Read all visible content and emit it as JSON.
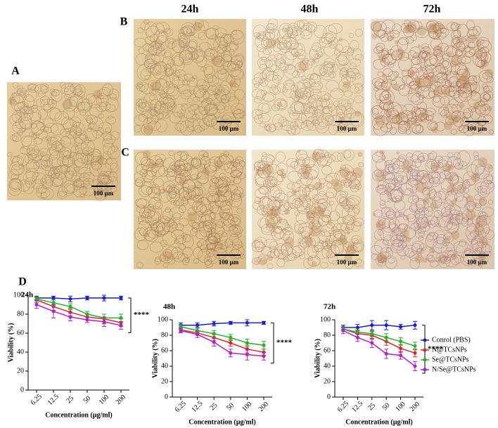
{
  "figure": {
    "panel_labels": [
      "A",
      "B",
      "C",
      "D"
    ],
    "time_labels": [
      "24h",
      "48h",
      "72h"
    ],
    "scale_bar": "100 µm"
  },
  "chart_data": [
    {
      "type": "line",
      "title": "24h",
      "x_label": "Concentration (µg/ml)",
      "y_label": "Viability (%)",
      "annotation": "****",
      "categories": [
        "6.25",
        "12.5",
        "25",
        "50",
        "100",
        "200"
      ],
      "ylim": [
        0,
        100
      ],
      "yticks": [
        0,
        20,
        40,
        60,
        80,
        100
      ],
      "series": [
        {
          "name": "Conrol (PBS)",
          "color": "#1c1cd8",
          "values": [
            97,
            97,
            96,
            97,
            97,
            97
          ],
          "errors": [
            2,
            2,
            3,
            2,
            3,
            2
          ]
        },
        {
          "name": "N@TCsNPs",
          "color": "#e02424",
          "values": [
            95,
            88,
            82,
            77,
            75,
            71
          ],
          "errors": [
            3,
            4,
            4,
            3,
            5,
            4
          ]
        },
        {
          "name": "Se@TCsNPs",
          "color": "#22b422",
          "values": [
            96,
            92,
            88,
            80,
            76,
            76
          ],
          "errors": [
            2,
            3,
            3,
            3,
            4,
            4
          ]
        },
        {
          "name": "N/Se@TCsNPs",
          "color": "#b020d0",
          "values": [
            90,
            83,
            77,
            74,
            72,
            68
          ],
          "errors": [
            4,
            7,
            4,
            3,
            5,
            4
          ]
        }
      ]
    },
    {
      "type": "line",
      "title": "48h",
      "x_label": "Concentration (µg/ml)",
      "y_label": "Viability (%)",
      "annotation": "****",
      "categories": [
        "6.25",
        "12.5",
        "25",
        "50",
        "100",
        "200"
      ],
      "ylim": [
        0,
        100
      ],
      "yticks": [
        0,
        20,
        40,
        60,
        80,
        100
      ],
      "series": [
        {
          "name": "Conrol (PBS)",
          "color": "#1c1cd8",
          "values": [
            93,
            93,
            95,
            96,
            96,
            96
          ],
          "errors": [
            3,
            3,
            3,
            2,
            4,
            2
          ]
        },
        {
          "name": "N@TCsNPs",
          "color": "#e02424",
          "values": [
            87,
            83,
            77,
            70,
            62,
            58
          ],
          "errors": [
            3,
            3,
            4,
            4,
            5,
            4
          ]
        },
        {
          "name": "Se@TCsNPs",
          "color": "#22b422",
          "values": [
            91,
            86,
            82,
            77,
            70,
            67
          ],
          "errors": [
            3,
            3,
            4,
            4,
            5,
            5
          ]
        },
        {
          "name": "N/Se@TCsNPs",
          "color": "#b020d0",
          "values": [
            86,
            81,
            71,
            57,
            55,
            53
          ],
          "errors": [
            3,
            4,
            5,
            5,
            7,
            5
          ]
        }
      ]
    },
    {
      "type": "line",
      "title": "72h",
      "x_label": "Concentration (µg/ml)",
      "y_label": "Viability (%)",
      "annotation": "****",
      "legend": "right",
      "categories": [
        "6.25",
        "12.5",
        "25",
        "50",
        "100",
        "200"
      ],
      "ylim": [
        0,
        100
      ],
      "yticks": [
        0,
        20,
        40,
        60,
        80,
        100
      ],
      "series": [
        {
          "name": "Conrol (PBS)",
          "color": "#1c1cd8",
          "values": [
            90,
            90,
            93,
            93,
            91,
            93
          ],
          "errors": [
            3,
            4,
            6,
            6,
            3,
            5
          ]
        },
        {
          "name": "N@TCsNPs",
          "color": "#e02424",
          "values": [
            88,
            82,
            80,
            72,
            63,
            57
          ],
          "errors": [
            3,
            4,
            5,
            5,
            5,
            5
          ]
        },
        {
          "name": "Se@TCsNPs",
          "color": "#22b422",
          "values": [
            88,
            84,
            82,
            77,
            72,
            66
          ],
          "errors": [
            3,
            3,
            4,
            5,
            5,
            5
          ]
        },
        {
          "name": "N/Se@TCsNPs",
          "color": "#b020d0",
          "values": [
            86,
            77,
            70,
            56,
            54,
            40
          ],
          "errors": [
            4,
            5,
            6,
            6,
            5,
            6
          ]
        }
      ]
    }
  ]
}
